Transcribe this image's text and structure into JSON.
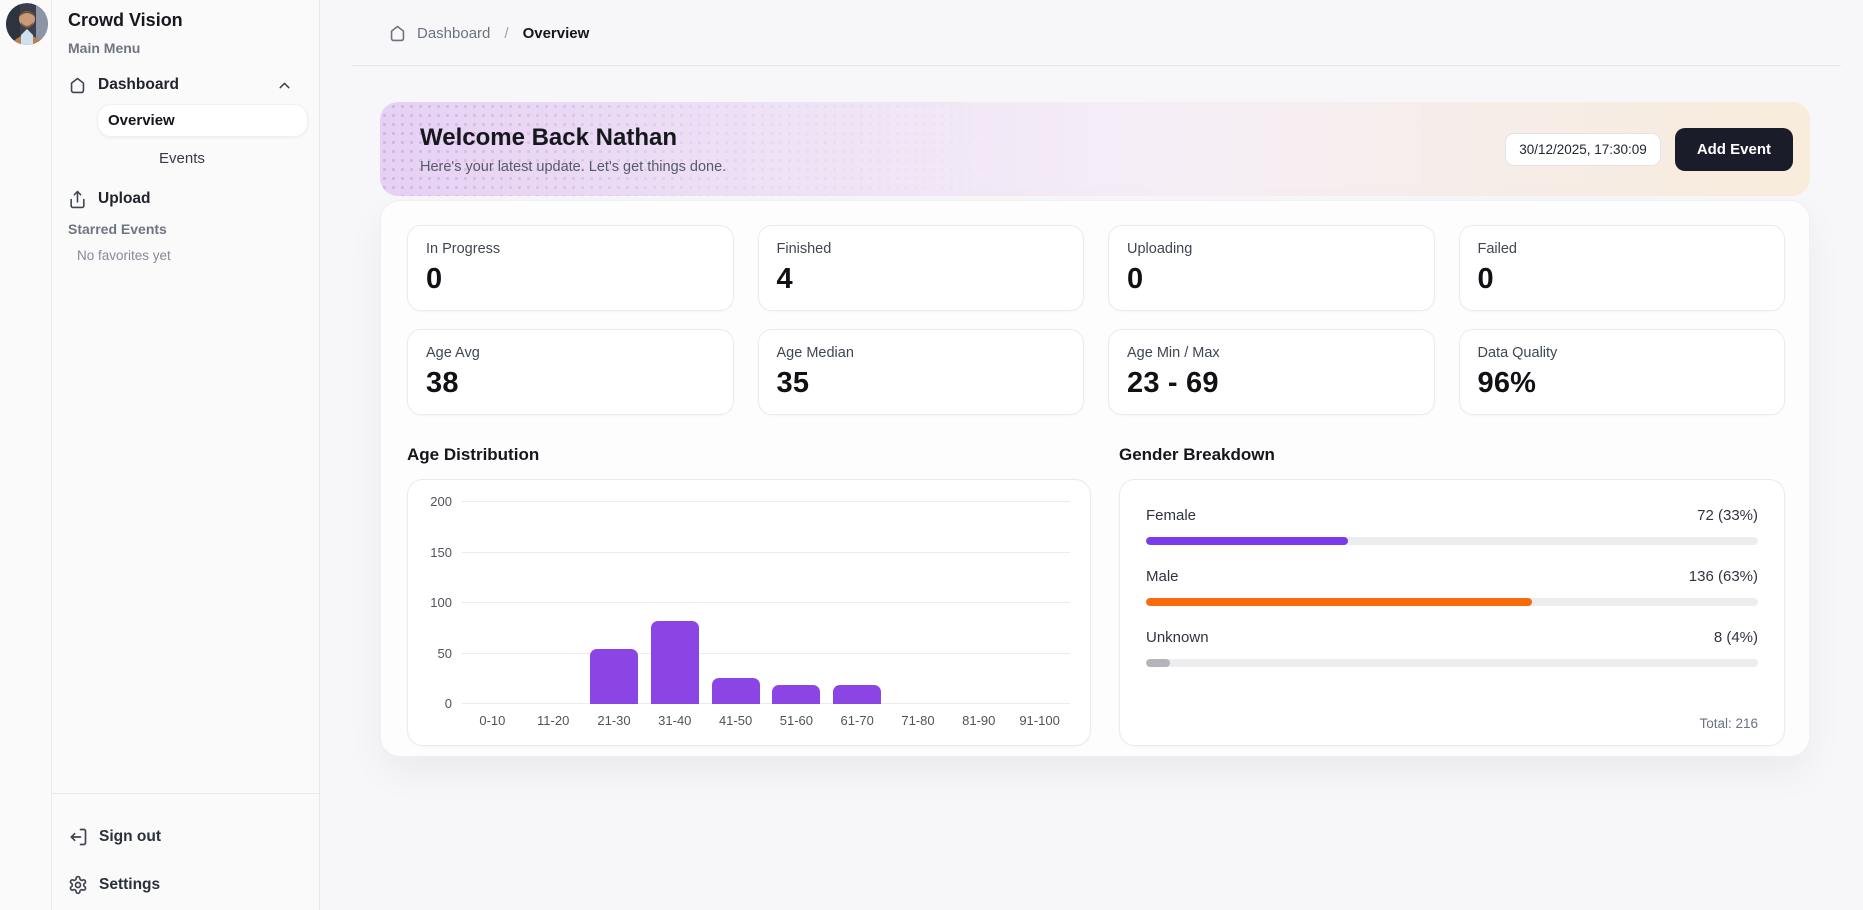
{
  "app": {
    "title": "Crowd Vision"
  },
  "sidebar": {
    "section_label": "Main Menu",
    "dashboard_label": "Dashboard",
    "overview_label": "Overview",
    "events_label": "Events",
    "upload_label": "Upload",
    "starred_label": "Starred Events",
    "starred_empty": "No favorites yet",
    "signout_label": "Sign out",
    "settings_label": "Settings"
  },
  "breadcrumb": {
    "parent": "Dashboard",
    "separator": "/",
    "current": "Overview"
  },
  "banner": {
    "title": "Welcome Back Nathan",
    "subtitle": "Here's your latest update. Let's get things done.",
    "datetime": "30/12/2025, 17:30:09",
    "add_event_label": "Add Event"
  },
  "stats": [
    {
      "label": "In Progress",
      "value": "0"
    },
    {
      "label": "Finished",
      "value": "4"
    },
    {
      "label": "Uploading",
      "value": "0"
    },
    {
      "label": "Failed",
      "value": "0"
    },
    {
      "label": "Age Avg",
      "value": "38"
    },
    {
      "label": "Age Median",
      "value": "35"
    },
    {
      "label": "Age Min / Max",
      "value": "23 - 69"
    },
    {
      "label": "Data Quality",
      "value": "96%"
    }
  ],
  "chart_data": [
    {
      "type": "bar",
      "title": "Age Distribution",
      "categories": [
        "0-10",
        "11-20",
        "21-30",
        "31-40",
        "41-50",
        "51-60",
        "61-70",
        "71-80",
        "81-90",
        "91-100"
      ],
      "values": [
        0,
        0,
        54,
        82,
        26,
        19,
        19,
        0,
        0,
        0
      ],
      "xlabel": "",
      "ylabel": "",
      "ylim": [
        0,
        200
      ],
      "yticks": [
        0,
        50,
        100,
        150,
        200
      ],
      "grid": true,
      "legend": false,
      "bar_color": "#8b45e4"
    },
    {
      "type": "bar",
      "title": "Gender Breakdown",
      "orientation": "horizontal-progress",
      "categories": [
        "Female",
        "Male",
        "Unknown"
      ],
      "values": [
        72,
        136,
        8
      ],
      "percents": [
        33,
        63,
        4
      ],
      "value_labels": [
        "72 (33%)",
        "136 (63%)",
        "8 (4%)"
      ],
      "colors": [
        "#7c3aed",
        "#f76b0c",
        "#b4b4ba"
      ],
      "track_color": "#ededf0",
      "total_label": "Total: 216"
    }
  ],
  "colors": {
    "accent_purple": "#8b45e4",
    "accent_orange": "#f76b0c",
    "add_event_bg": "#1a1c2a",
    "banner_left": "#e6d1f3",
    "banner_right": "#f8ecdb",
    "page_bg": "#f7f7f9",
    "sidebar_bg": "#fafafb"
  }
}
